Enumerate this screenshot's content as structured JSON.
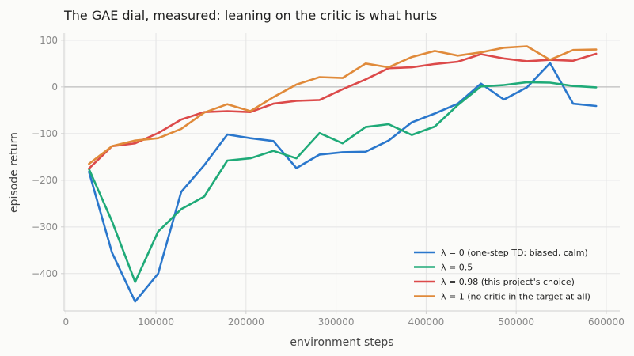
{
  "chart_data": {
    "type": "line",
    "title": "The GAE dial, measured: leaning on the critic is what hurts",
    "xlabel": "environment steps",
    "ylabel": "episode return",
    "xlim": [
      -2000,
      615000
    ],
    "ylim": [
      -480,
      115
    ],
    "xticks": [
      0,
      100000,
      200000,
      300000,
      400000,
      500000,
      600000
    ],
    "xtick_labels": [
      "0",
      "100000",
      "200000",
      "300000",
      "400000",
      "500000",
      "600000"
    ],
    "yticks": [
      -400,
      -300,
      -200,
      -100,
      0,
      100
    ],
    "ytick_labels": [
      "−400",
      "−300",
      "−200",
      "−100",
      "0",
      "100"
    ],
    "grid": true,
    "zero_line": true,
    "legend_position": "lower-right",
    "x": [
      25600,
      51200,
      76800,
      102400,
      128000,
      153600,
      179200,
      204800,
      230400,
      256000,
      281600,
      307200,
      332800,
      358400,
      384000,
      409600,
      435200,
      460800,
      486400,
      512000,
      537600,
      563200,
      588800
    ],
    "series": [
      {
        "name": "λ = 0  (one-step TD: biased, calm)",
        "color": "#2a77cc",
        "values": [
          -182,
          -355,
          -460,
          -400,
          -225,
          -168,
          -102,
          -110,
          -116,
          -174,
          -145,
          -140,
          -139,
          -115,
          -76,
          -57,
          -36,
          7,
          -27,
          -1,
          51,
          -36,
          -41
        ]
      },
      {
        "name": "λ = 0.5",
        "color": "#1faa78",
        "values": [
          -176,
          -288,
          -418,
          -310,
          -262,
          -235,
          -158,
          -153,
          -137,
          -153,
          -99,
          -121,
          -86,
          -80,
          -103,
          -85,
          -39,
          1,
          4,
          10,
          9,
          2,
          -1
        ]
      },
      {
        "name": "λ = 0.98  (this project's choice)",
        "color": "#dc4a4a",
        "values": [
          -175,
          -127,
          -121,
          -99,
          -70,
          -54,
          -52,
          -54,
          -36,
          -30,
          -28,
          -5,
          16,
          40,
          42,
          49,
          54,
          70,
          61,
          55,
          58,
          56,
          71
        ]
      },
      {
        "name": "λ = 1  (no critic in the target at all)",
        "color": "#e08a3a",
        "values": [
          -165,
          -127,
          -115,
          -110,
          -90,
          -55,
          -37,
          -52,
          -22,
          5,
          21,
          19,
          50,
          42,
          64,
          77,
          67,
          74,
          84,
          87,
          58,
          79,
          80
        ]
      }
    ]
  }
}
